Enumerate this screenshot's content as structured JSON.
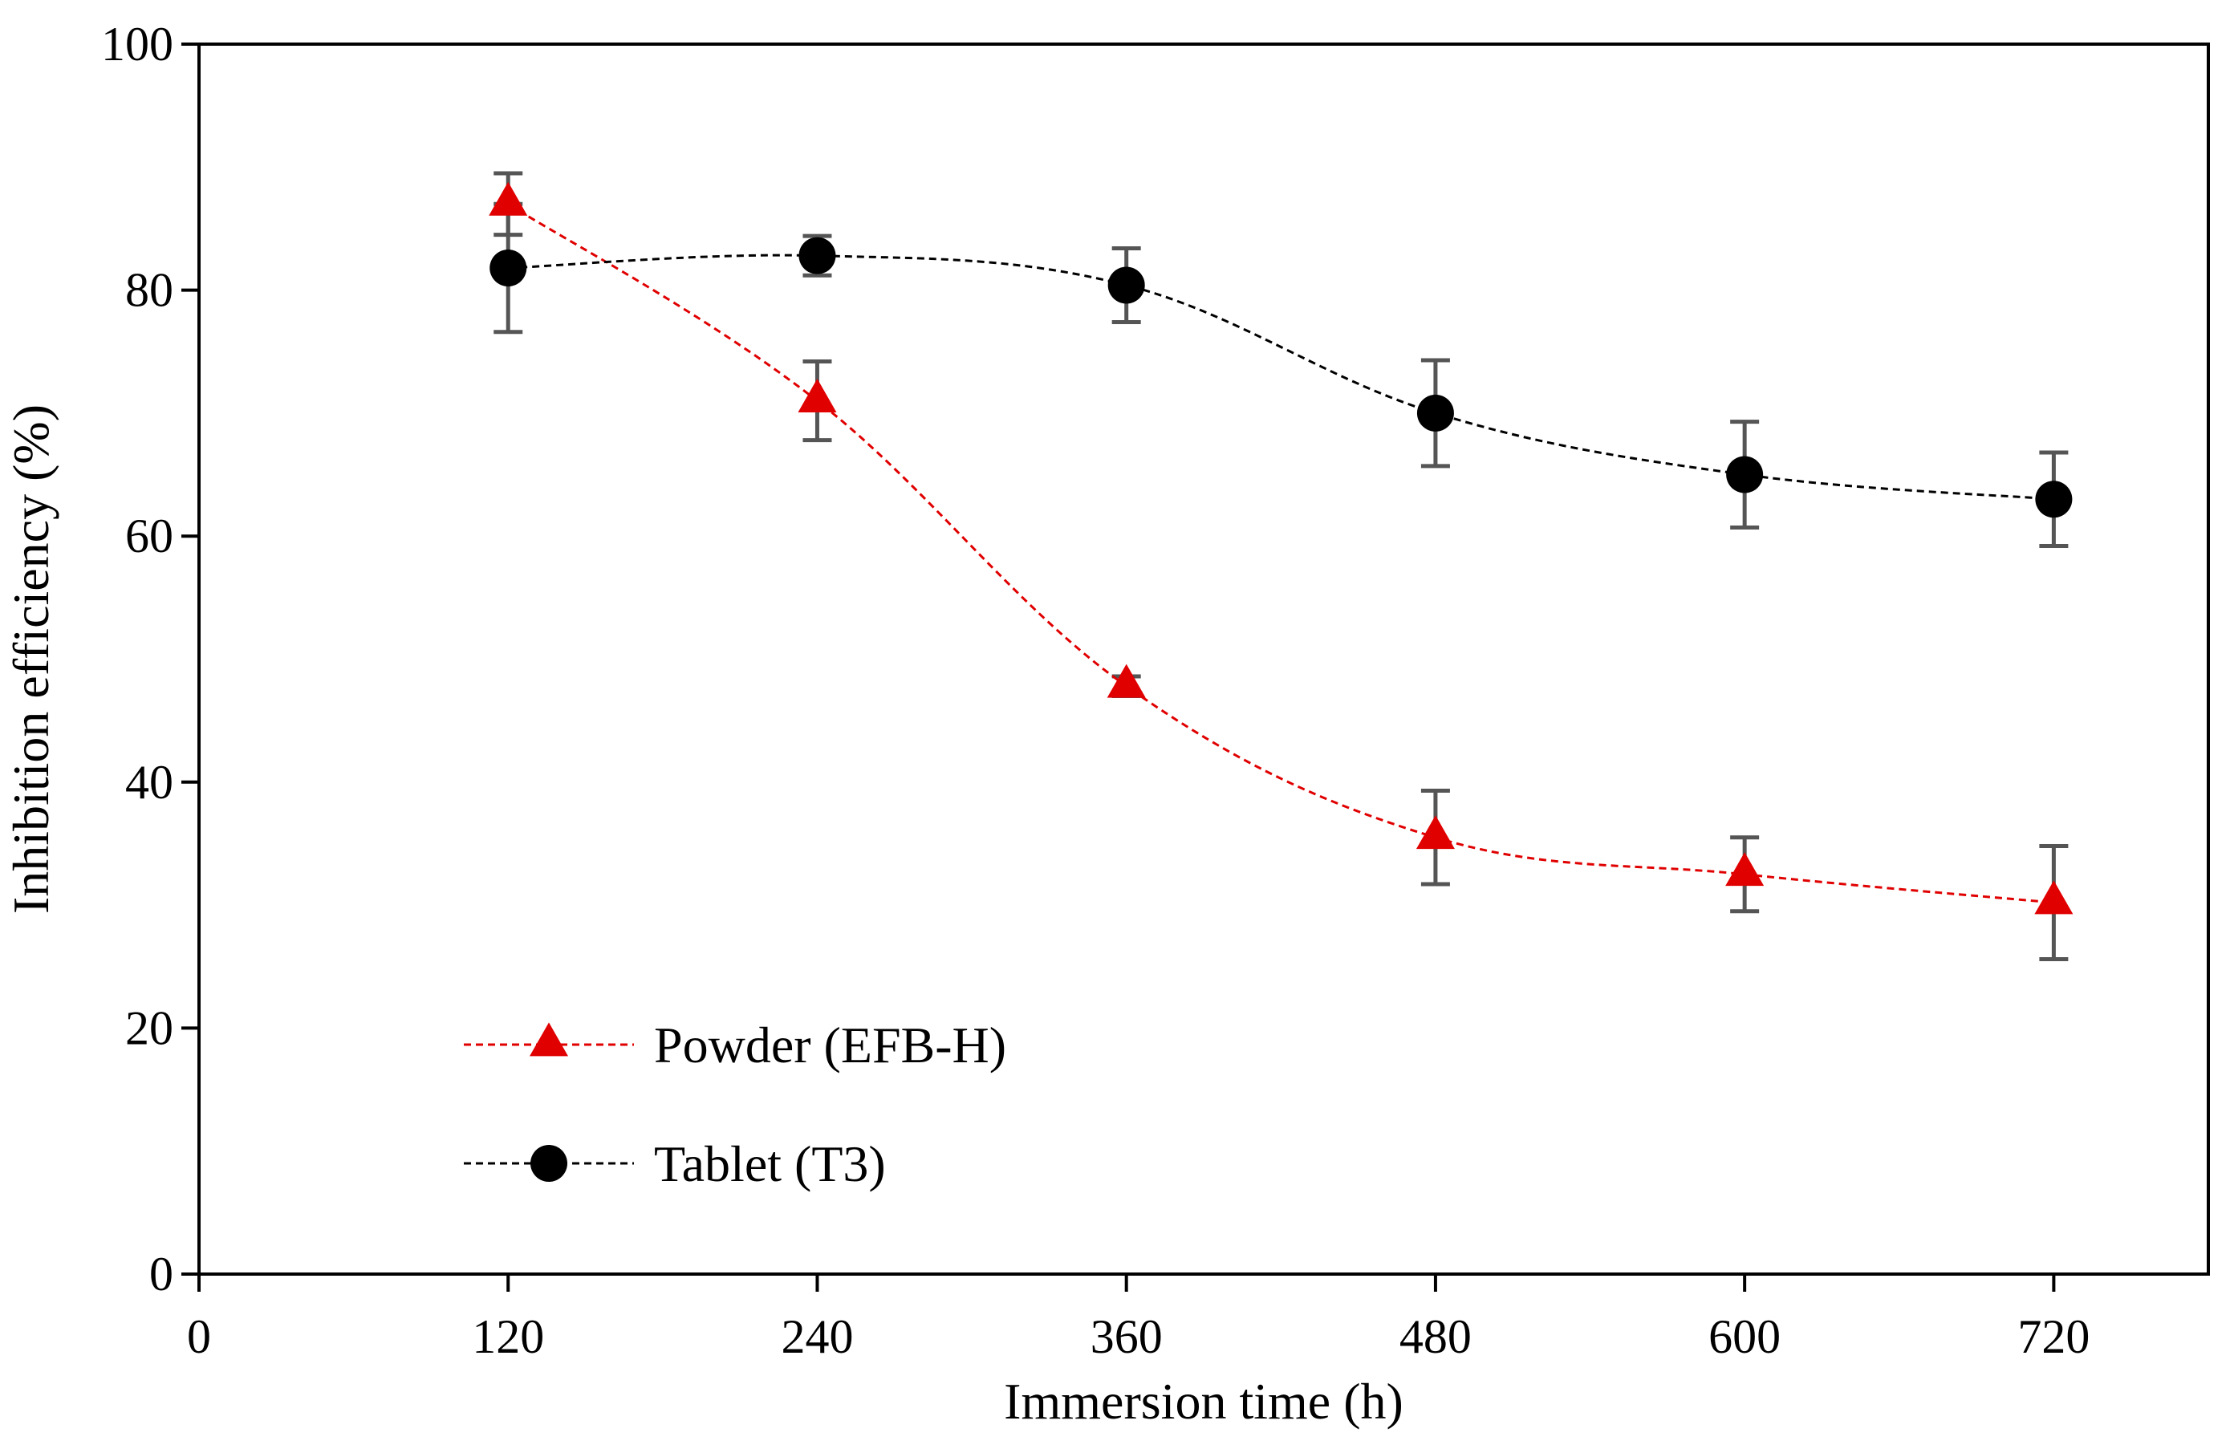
{
  "chart_data": {
    "type": "line",
    "title": "",
    "xlabel": "Immersion time (h)",
    "ylabel": "Inhibition efficiency (%)",
    "xlim": [
      0,
      780
    ],
    "ylim": [
      0,
      100
    ],
    "xticks": [
      0,
      120,
      240,
      360,
      480,
      600,
      720
    ],
    "yticks": [
      0,
      20,
      40,
      60,
      80,
      100
    ],
    "grid": false,
    "legend_position": "lower-left",
    "series": [
      {
        "name": "Powder (EFB-H)",
        "marker": "triangle",
        "color": "#e00000",
        "line_style": "dashed-smooth",
        "x": [
          120,
          240,
          360,
          480,
          600,
          720
        ],
        "values": [
          87.0,
          71.0,
          47.8,
          35.5,
          32.5,
          30.2
        ],
        "error": [
          2.5,
          3.2,
          0.8,
          3.8,
          3.0,
          4.6
        ]
      },
      {
        "name": "Tablet (T3)",
        "marker": "circle",
        "color": "#000000",
        "line_style": "dashed-smooth",
        "x": [
          120,
          240,
          360,
          480,
          600,
          720
        ],
        "values": [
          81.8,
          82.8,
          80.4,
          70.0,
          65.0,
          63.0
        ],
        "error": [
          5.2,
          1.6,
          3.0,
          4.3,
          4.3,
          3.8
        ]
      }
    ],
    "error_bar_color": "#555555"
  }
}
